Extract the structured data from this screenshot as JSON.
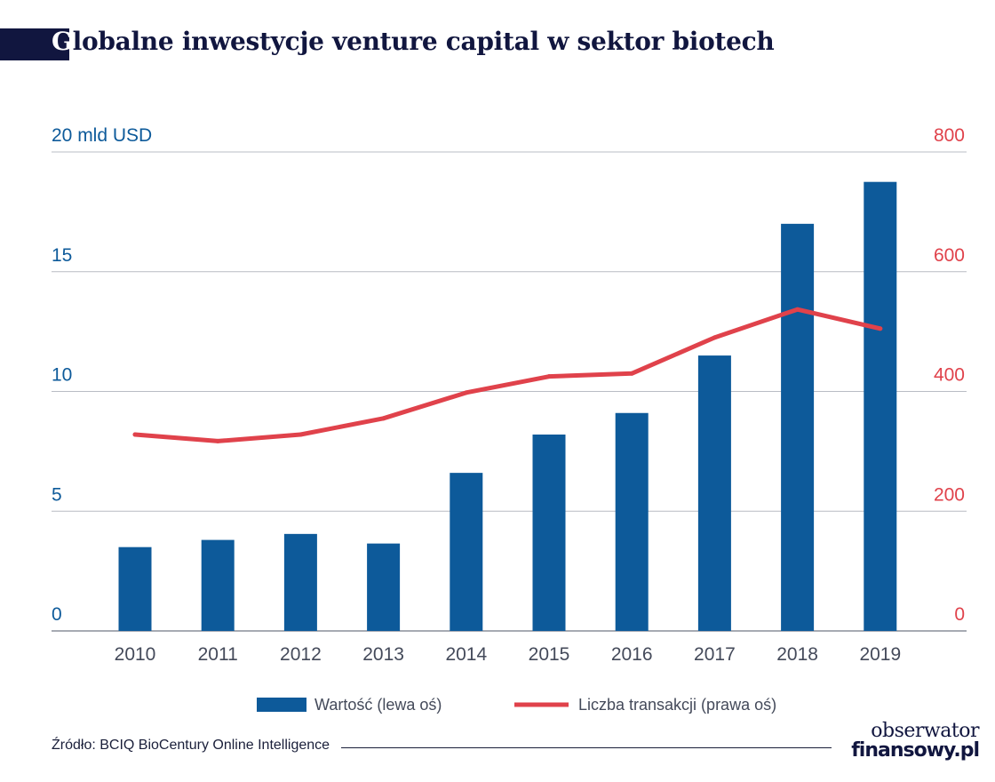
{
  "title": {
    "first_letter": "G",
    "rest": "lobalne inwestycje venture capital w sektor biotech"
  },
  "chart_data": {
    "type": "bar",
    "categories": [
      "2010",
      "2011",
      "2012",
      "2013",
      "2014",
      "2015",
      "2016",
      "2017",
      "2018",
      "2019"
    ],
    "series": [
      {
        "name": "Wartość (lewa oś)",
        "type": "bar",
        "axis": "left",
        "values": [
          3.5,
          3.8,
          4.05,
          3.65,
          6.6,
          8.2,
          9.1,
          11.5,
          17.0,
          18.75
        ],
        "color": "#0d5a9a"
      },
      {
        "name": "Liczba transakcji (prawa oś)",
        "type": "line",
        "axis": "right",
        "values": [
          328,
          317,
          328,
          355,
          398,
          425,
          430,
          490,
          537,
          505
        ],
        "color": "#e0424b"
      }
    ],
    "left_axis": {
      "label": "20 mld USD",
      "ticks": [
        "0",
        "5",
        "10",
        "15"
      ],
      "range": [
        0,
        20
      ]
    },
    "right_axis": {
      "ticks": [
        "0",
        "200",
        "400",
        "600",
        "800"
      ],
      "range": [
        0,
        800
      ]
    },
    "grid": true,
    "legend_position": "bottom"
  },
  "source": "Źródło: BCIQ BioCentury Online Intelligence",
  "logo": {
    "line1": "obserwator",
    "line2": "finansowy.pl"
  },
  "colors": {
    "bar": "#0d5a9a",
    "line": "#e0424b",
    "left_axis": "#0d5a9a",
    "right_axis": "#e0424b",
    "title": "#11163f"
  }
}
